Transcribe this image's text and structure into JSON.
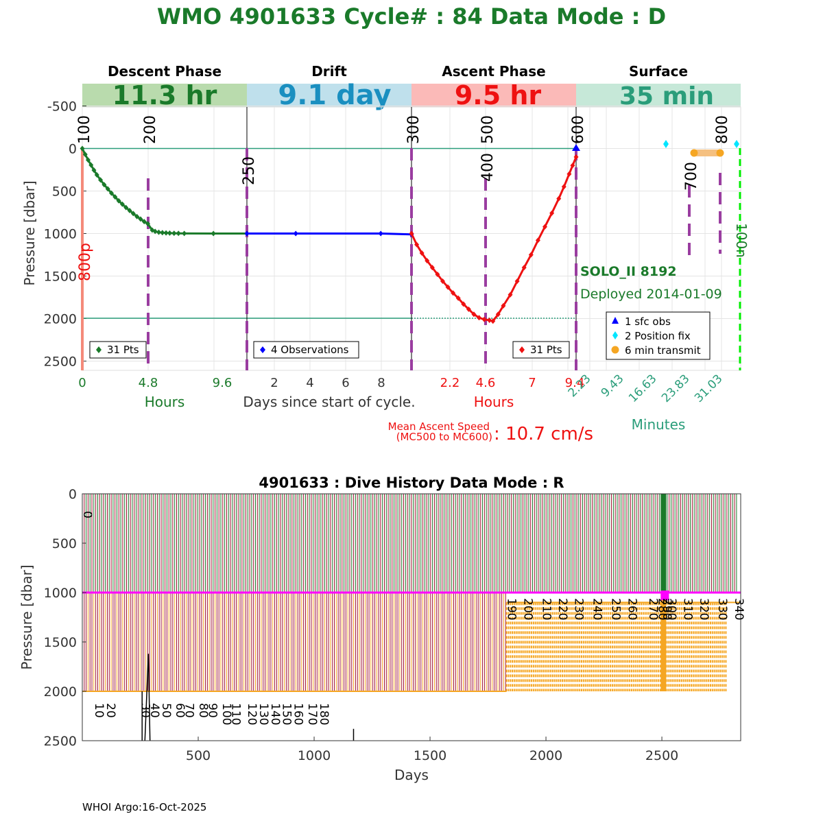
{
  "title": "WMO 4901633   Cycle# : 84   Data Mode : D",
  "footer": "WHOI Argo:16-Oct-2025",
  "colors": {
    "green": "#1a7a2a",
    "teal": "#2a9d7a",
    "red": "#ee1111",
    "blue": "#0000ff",
    "purple": "#9a3da0",
    "orange": "#f5a623",
    "cyan": "#00e5ff",
    "lime": "#00ee00",
    "darkred": "#a01030",
    "magenta": "#ff00ff"
  },
  "chart_data": [
    {
      "type": "line",
      "title": "WMO 4901633   Cycle# : 84   Data Mode : D",
      "ylabel": "Pressure [dbar]",
      "xlabel": "Days since start of cycle.",
      "ylim": [
        2600,
        -650
      ],
      "y_ticks": [
        "-500",
        "0",
        "500",
        "1000",
        "1500",
        "2000",
        "2500"
      ],
      "phases": [
        {
          "name": "Descent Phase",
          "duration": "11.3 hr",
          "unit_label": "Hours",
          "ticks": [
            "0",
            "4.8",
            "9.6"
          ]
        },
        {
          "name": "Drift",
          "duration": "9.1 day",
          "unit_label": "",
          "ticks": [
            "2",
            "4",
            "6",
            "8"
          ]
        },
        {
          "name": "Ascent Phase",
          "duration": "9.5 hr",
          "unit_label": "Hours",
          "ticks": [
            "2.2",
            "4.6",
            "7",
            "9.4"
          ]
        },
        {
          "name": "Surface",
          "duration": "35 min",
          "unit_label": "Minutes",
          "ticks": [
            "2.23",
            "9.43",
            "16.63",
            "23.83",
            "31.03"
          ]
        }
      ],
      "message_markers": [
        "100",
        "200",
        "250",
        "300",
        "400",
        "500",
        "600",
        "700",
        "800"
      ],
      "side_labels": {
        "left": "800p",
        "right": "100n"
      },
      "series": [
        {
          "name": "descent",
          "legend": "31 Pts",
          "x": [
            0,
            0.2,
            0.4,
            0.6,
            0.8,
            1.0,
            1.25,
            1.5,
            1.75,
            2.0,
            2.25,
            2.5,
            2.75,
            3.0,
            3.25,
            3.5,
            3.75,
            4.0,
            4.25,
            4.5,
            4.8,
            5.0,
            5.25,
            5.5,
            5.75,
            6.0,
            6.3,
            6.6,
            7.0,
            9.0,
            11.3
          ],
          "y": [
            0,
            70,
            135,
            195,
            255,
            310,
            370,
            425,
            475,
            525,
            570,
            615,
            655,
            695,
            730,
            765,
            800,
            830,
            860,
            885,
            960,
            975,
            985,
            990,
            993,
            995,
            997,
            998,
            999,
            1000,
            1000
          ]
        },
        {
          "name": "drift",
          "legend": "4 Observations",
          "x": [
            0,
            2.7,
            7.4,
            9.1
          ],
          "y": [
            1000,
            1000,
            1000,
            1010
          ]
        },
        {
          "name": "ascent",
          "legend": "31 Pts",
          "x": [
            0,
            0.3,
            0.6,
            0.9,
            1.2,
            1.5,
            1.8,
            2.1,
            2.4,
            2.7,
            3.0,
            3.3,
            3.6,
            3.9,
            4.2,
            4.5,
            4.7,
            5.0,
            5.3,
            5.7,
            6.1,
            6.5,
            6.9,
            7.3,
            7.7,
            8.1,
            8.5,
            8.8,
            9.1,
            9.3,
            9.5
          ],
          "y": [
            1000,
            1130,
            1230,
            1320,
            1400,
            1480,
            1560,
            1630,
            1700,
            1760,
            1830,
            1890,
            1950,
            1990,
            2010,
            2020,
            2030,
            1950,
            1850,
            1720,
            1560,
            1400,
            1250,
            1080,
            920,
            760,
            590,
            450,
            300,
            200,
            100
          ]
        }
      ],
      "surface_legend": [
        "1 sfc obs",
        "2 Position fix",
        "6 min transmit"
      ],
      "float_info": {
        "model": "SOLO_II 8192",
        "deployed": "Deployed 2014-01-09"
      },
      "ascent_speed": {
        "label_line1": "Mean Ascent Speed",
        "label_line2": "(MC500 to MC600)",
        "value": ":  10.7 cm/s"
      }
    },
    {
      "type": "bar",
      "title": "4901633 : Dive History      Data Mode : R",
      "xlabel": "Days",
      "ylabel": "Pressure [dbar]",
      "xlim": [
        0,
        2840
      ],
      "ylim": [
        2500,
        0
      ],
      "x_ticks": [
        "500",
        "1000",
        "1500",
        "2000",
        "2500"
      ],
      "y_ticks": [
        "0",
        "500",
        "1000",
        "1500",
        "2000",
        "2500"
      ],
      "cycle_labels": [
        "0",
        "10",
        "20",
        "30",
        "40",
        "50",
        "60",
        "70",
        "80",
        "90",
        "100",
        "110",
        "120",
        "130",
        "140",
        "150",
        "160",
        "170",
        "180",
        "190",
        "200",
        "210",
        "220",
        "230",
        "240",
        "250",
        "260",
        "270",
        "280",
        "290",
        "300",
        "310",
        "320",
        "330",
        "340"
      ],
      "cycle_label_days": [
        0,
        50,
        100,
        250,
        290,
        340,
        400,
        440,
        500,
        540,
        600,
        640,
        710,
        760,
        810,
        860,
        910,
        970,
        1020,
        1830,
        1900,
        1980,
        2050,
        2120,
        2200,
        2280,
        2350,
        2440,
        2480,
        2500,
        2520,
        2590,
        2660,
        2740,
        2810
      ]
    }
  ]
}
